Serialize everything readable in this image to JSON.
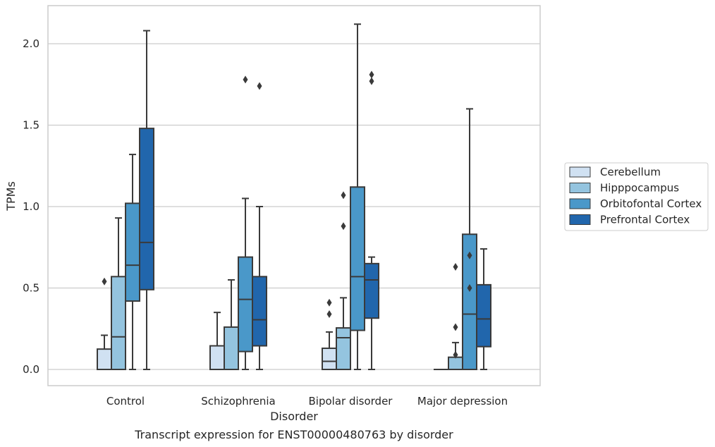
{
  "chart_data": {
    "type": "box",
    "xlabel": "Disorder",
    "ylabel": "TPMs",
    "caption": "Transcript expression for ENST00000480763 by disorder",
    "categories": [
      "Control",
      "Schizophrenia",
      "Bipolar disorder",
      "Major depression"
    ],
    "y_ticks": [
      "0.0",
      "0.5",
      "1.0",
      "1.5",
      "2.0"
    ],
    "ylim": [
      -0.1,
      2.25
    ],
    "grid": "horizontal",
    "legend_position": "right",
    "series": [
      {
        "name": "Cerebellum",
        "color": "#d0e1f2",
        "boxes": [
          {
            "whisker_low": 0.0,
            "q1": 0.0,
            "median": 0.0,
            "q3": 0.125,
            "whisker_high": 0.21,
            "outliers": [
              0.54
            ]
          },
          {
            "whisker_low": 0.0,
            "q1": 0.0,
            "median": 0.0,
            "q3": 0.145,
            "whisker_high": 0.35,
            "outliers": []
          },
          {
            "whisker_low": 0.0,
            "q1": 0.0,
            "median": 0.05,
            "q3": 0.13,
            "whisker_high": 0.23,
            "outliers": [
              0.34,
              0.41
            ]
          },
          {
            "whisker_low": 0.0,
            "q1": 0.0,
            "median": 0.0,
            "q3": 0.0,
            "whisker_high": 0.0,
            "outliers": []
          }
        ]
      },
      {
        "name": "Hipppocampus",
        "color": "#94c4df",
        "boxes": [
          {
            "whisker_low": 0.0,
            "q1": 0.0,
            "median": 0.2,
            "q3": 0.57,
            "whisker_high": 0.93,
            "outliers": []
          },
          {
            "whisker_low": 0.0,
            "q1": 0.0,
            "median": 0.0,
            "q3": 0.26,
            "whisker_high": 0.55,
            "outliers": []
          },
          {
            "whisker_low": 0.0,
            "q1": 0.0,
            "median": 0.195,
            "q3": 0.255,
            "whisker_high": 0.44,
            "outliers": [
              0.88,
              1.07
            ]
          },
          {
            "whisker_low": 0.0,
            "q1": 0.0,
            "median": 0.0,
            "q3": 0.075,
            "whisker_high": 0.165,
            "outliers": [
              0.09,
              0.26,
              0.63
            ]
          }
        ]
      },
      {
        "name": "Orbitofontal Cortex",
        "color": "#4a98c9",
        "boxes": [
          {
            "whisker_low": 0.0,
            "q1": 0.42,
            "median": 0.64,
            "q3": 1.02,
            "whisker_high": 1.32,
            "outliers": []
          },
          {
            "whisker_low": 0.0,
            "q1": 0.11,
            "median": 0.43,
            "q3": 0.69,
            "whisker_high": 1.05,
            "outliers": [
              1.78
            ]
          },
          {
            "whisker_low": 0.0,
            "q1": 0.24,
            "median": 0.57,
            "q3": 1.12,
            "whisker_high": 2.12,
            "outliers": []
          },
          {
            "whisker_low": 0.0,
            "q1": 0.0,
            "median": 0.34,
            "q3": 0.83,
            "whisker_high": 1.6,
            "outliers": [
              0.5,
              0.7
            ]
          }
        ]
      },
      {
        "name": "Prefrontal Cortex",
        "color": "#2166ac",
        "boxes": [
          {
            "whisker_low": 0.0,
            "q1": 0.49,
            "median": 0.78,
            "q3": 1.48,
            "whisker_high": 2.08,
            "outliers": []
          },
          {
            "whisker_low": 0.0,
            "q1": 0.145,
            "median": 0.305,
            "q3": 0.57,
            "whisker_high": 1.0,
            "outliers": [
              1.74
            ]
          },
          {
            "whisker_low": 0.0,
            "q1": 0.315,
            "median": 0.55,
            "q3": 0.65,
            "whisker_high": 0.69,
            "outliers": [
              1.77,
              1.81
            ]
          },
          {
            "whisker_low": 0.0,
            "q1": 0.14,
            "median": 0.31,
            "q3": 0.52,
            "whisker_high": 0.74,
            "outliers": []
          }
        ]
      }
    ]
  }
}
